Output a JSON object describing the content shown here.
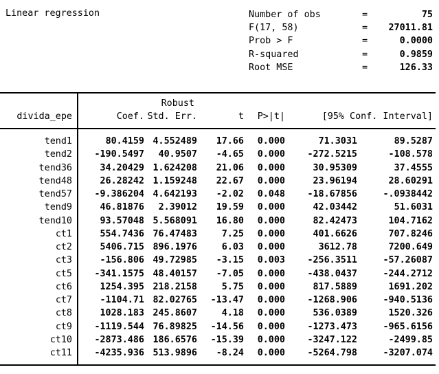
{
  "colors": {
    "text": "#000000",
    "background": "#ffffff",
    "rule": "#000000"
  },
  "header": {
    "title": "Linear regression",
    "stats": [
      {
        "label": "Number of obs",
        "eq": "=",
        "value": "75"
      },
      {
        "label": "F(17, 58)",
        "eq": "=",
        "value": "27011.81"
      },
      {
        "label": "Prob > F",
        "eq": "=",
        "value": "0.0000"
      },
      {
        "label": "R-squared",
        "eq": "=",
        "value": "0.9859"
      },
      {
        "label": "Root MSE",
        "eq": "=",
        "value": "126.33"
      }
    ]
  },
  "table": {
    "dep_var": "divida_epe",
    "robust_label": "Robust",
    "col_coef": "Coef.",
    "col_se": "Std. Err.",
    "col_t": "t",
    "col_p": "P>|t|",
    "col_ci": "[95% Conf. Interval]",
    "rows": [
      {
        "name": "tend1",
        "coef": "80.4159",
        "se": "4.552489",
        "t": "17.66",
        "p": "0.000",
        "lo": "71.3031",
        "hi": "89.5287"
      },
      {
        "name": "tend2",
        "coef": "-190.5497",
        "se": "40.9507",
        "t": "-4.65",
        "p": "0.000",
        "lo": "-272.5215",
        "hi": "-108.578"
      },
      {
        "name": "tend36",
        "coef": "34.20429",
        "se": "1.624208",
        "t": "21.06",
        "p": "0.000",
        "lo": "30.95309",
        "hi": "37.4555"
      },
      {
        "name": "tend48",
        "coef": "26.28242",
        "se": "1.159248",
        "t": "22.67",
        "p": "0.000",
        "lo": "23.96194",
        "hi": "28.60291"
      },
      {
        "name": "tend57",
        "coef": "-9.386204",
        "se": "4.642193",
        "t": "-2.02",
        "p": "0.048",
        "lo": "-18.67856",
        "hi": "-.0938442"
      },
      {
        "name": "tend9",
        "coef": "46.81876",
        "se": "2.39012",
        "t": "19.59",
        "p": "0.000",
        "lo": "42.03442",
        "hi": "51.6031"
      },
      {
        "name": "tend10",
        "coef": "93.57048",
        "se": "5.568091",
        "t": "16.80",
        "p": "0.000",
        "lo": "82.42473",
        "hi": "104.7162"
      },
      {
        "name": "ct1",
        "coef": "554.7436",
        "se": "76.47483",
        "t": "7.25",
        "p": "0.000",
        "lo": "401.6626",
        "hi": "707.8246"
      },
      {
        "name": "ct2",
        "coef": "5406.715",
        "se": "896.1976",
        "t": "6.03",
        "p": "0.000",
        "lo": "3612.78",
        "hi": "7200.649"
      },
      {
        "name": "ct3",
        "coef": "-156.806",
        "se": "49.72985",
        "t": "-3.15",
        "p": "0.003",
        "lo": "-256.3511",
        "hi": "-57.26087"
      },
      {
        "name": "ct5",
        "coef": "-341.1575",
        "se": "48.40157",
        "t": "-7.05",
        "p": "0.000",
        "lo": "-438.0437",
        "hi": "-244.2712"
      },
      {
        "name": "ct6",
        "coef": "1254.395",
        "se": "218.2158",
        "t": "5.75",
        "p": "0.000",
        "lo": "817.5889",
        "hi": "1691.202"
      },
      {
        "name": "ct7",
        "coef": "-1104.71",
        "se": "82.02765",
        "t": "-13.47",
        "p": "0.000",
        "lo": "-1268.906",
        "hi": "-940.5136"
      },
      {
        "name": "ct8",
        "coef": "1028.183",
        "se": "245.8607",
        "t": "4.18",
        "p": "0.000",
        "lo": "536.0389",
        "hi": "1520.326"
      },
      {
        "name": "ct9",
        "coef": "-1119.544",
        "se": "76.89825",
        "t": "-14.56",
        "p": "0.000",
        "lo": "-1273.473",
        "hi": "-965.6156"
      },
      {
        "name": "ct10",
        "coef": "-2873.486",
        "se": "186.6576",
        "t": "-15.39",
        "p": "0.000",
        "lo": "-3247.122",
        "hi": "-2499.85"
      },
      {
        "name": "ct11",
        "coef": "-4235.936",
        "se": "513.9896",
        "t": "-8.24",
        "p": "0.000",
        "lo": "-5264.798",
        "hi": "-3207.074"
      }
    ]
  }
}
